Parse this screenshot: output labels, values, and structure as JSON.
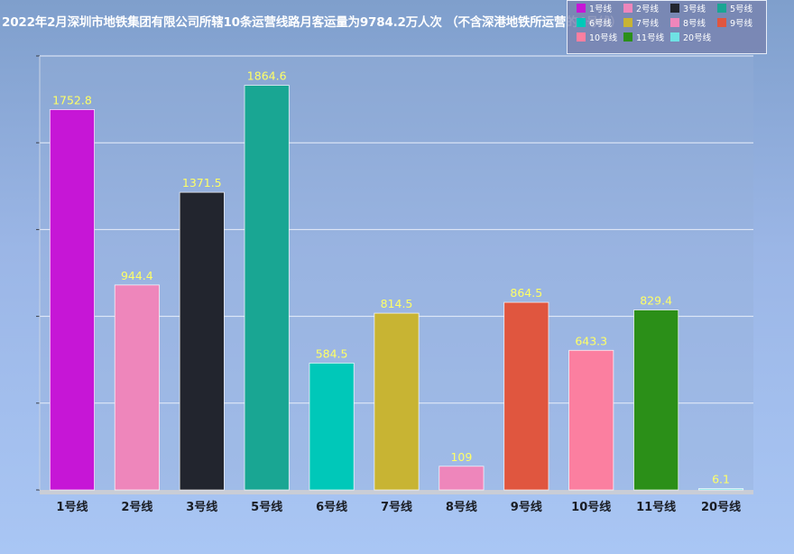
{
  "chart_data": {
    "type": "bar",
    "title": "2022年2月深圳市地铁集团有限公司所辖10条运营线路月客运量为9784.2万人次  （不含深港地铁所运营的4号线）",
    "categories": [
      "1号线",
      "2号线",
      "3号线",
      "5号线",
      "6号线",
      "7号线",
      "8号线",
      "9号线",
      "10号线",
      "11号线",
      "20号线"
    ],
    "values": [
      1752.8,
      944.4,
      1371.5,
      1864.6,
      584.5,
      814.5,
      109,
      864.5,
      643.3,
      829.4,
      6.1
    ],
    "colors": [
      "#c616d6",
      "#ee86bb",
      "#22252e",
      "#19a693",
      "#00c8b9",
      "#c8b433",
      "#ee86bb",
      "#e0563f",
      "#fb7fa0",
      "#2b8f18",
      "#6fe2e4"
    ],
    "ylim": [
      0,
      2000
    ],
    "y_tick_step": 400,
    "y_tick_labels_shown": false,
    "grid": true,
    "legend": {
      "placement": "top-right",
      "entries": [
        "1号线",
        "2号线",
        "3号线",
        "5号线",
        "6号线",
        "7号线",
        "8号线",
        "9号线",
        "10号线",
        "11号线",
        "20号线"
      ]
    },
    "value_label_color": "#ffff66",
    "xlabel": "",
    "ylabel": ""
  }
}
